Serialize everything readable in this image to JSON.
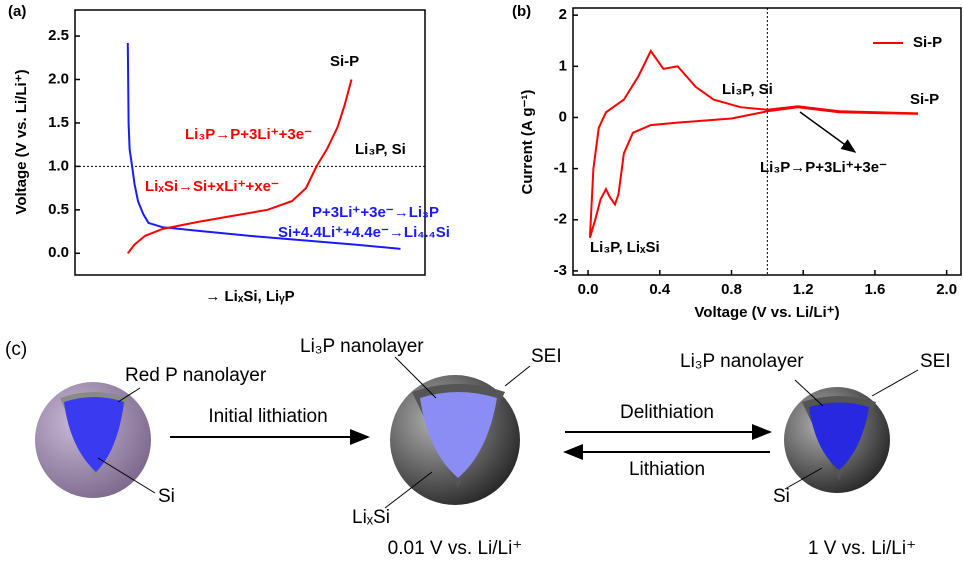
{
  "chart_data": [
    {
      "type": "line",
      "label": "(a)",
      "y_label": "Voltage (V vs. Li/Li⁺)",
      "x_label": "→ LiₓSi, LiᵧP",
      "xlim": [
        0,
        100
      ],
      "ylim": [
        -0.25,
        2.8
      ],
      "yticks": [
        {
          "value": 0,
          "label": "0.0"
        },
        0.5,
        {
          "value": 1,
          "label": "1.0"
        },
        1.5,
        {
          "value": 2,
          "label": "2.0"
        },
        2.5
      ],
      "hline": 1,
      "series": [
        {
          "color": "#1a1aff",
          "x": [
            15.1,
            15.3,
            15.6,
            16.3,
            17,
            18,
            19.5,
            21,
            25,
            35,
            50,
            65,
            80,
            93
          ],
          "values": [
            2.42,
            1.5,
            1.2,
            1.0,
            0.8,
            0.6,
            0.45,
            0.35,
            0.3,
            0.26,
            0.2,
            0.15,
            0.1,
            0.05
          ]
        },
        {
          "color": "#ff0000",
          "x": [
            15.1,
            17,
            20,
            25,
            35,
            45,
            55,
            62,
            66,
            69,
            72,
            75,
            77,
            79
          ],
          "values": [
            0.0,
            0.1,
            0.2,
            0.28,
            0.36,
            0.43,
            0.5,
            0.6,
            0.75,
            1.0,
            1.2,
            1.45,
            1.7,
            2.0
          ]
        }
      ],
      "annotations": [
        {
          "text": "Si-P",
          "color": "#000000"
        },
        {
          "text": "Li₃P→P+3Li⁺+3e⁻",
          "color": "#ff0000"
        },
        {
          "text": "Li₃P, Si",
          "color": "#000000"
        },
        {
          "text": "LiₓSi→Si+xLi⁺+xe⁻",
          "color": "#ff0000"
        },
        {
          "text": "P+3Li⁺+3e⁻→Li₃P",
          "color": "#1a1aff"
        },
        {
          "text": "Si+4.4Li⁺+4.4e⁻→Li₄.₄Si",
          "color": "#1a1aff"
        }
      ]
    },
    {
      "type": "line",
      "label": "(b)",
      "y_label": "Current (A g⁻¹)",
      "x_label": "Voltage (V vs. Li/Li⁺)",
      "xlim": [
        -0.084,
        2.08
      ],
      "ylim": [
        -3.08,
        2.14
      ],
      "xticks": [
        {
          "value": 0,
          "label": "0.0"
        },
        0.4,
        0.8,
        1.2,
        1.6,
        {
          "value": 2,
          "label": "2.0"
        }
      ],
      "yticks": [
        -3,
        -2,
        -1,
        0,
        1,
        2
      ],
      "vline": 1,
      "legend": "upper right",
      "series": [
        {
          "name": "Si-P",
          "color": "#ff0000",
          "x": [
            1.84,
            1.4,
            1.17,
            1.0,
            0.8,
            0.5,
            0.35,
            0.25,
            0.2,
            0.17,
            0.15,
            0.12,
            0.1,
            0.07,
            0.04,
            0.01,
            0.03,
            0.06,
            0.1,
            0.2,
            0.28,
            0.35,
            0.42,
            0.5,
            0.6,
            0.7,
            0.85,
            1.0,
            1.17,
            1.4,
            1.84
          ],
          "values": [
            0.07,
            0.1,
            0.2,
            0.12,
            -0.02,
            -0.1,
            -0.15,
            -0.3,
            -0.7,
            -1.5,
            -1.7,
            -1.55,
            -1.4,
            -1.6,
            -2.0,
            -2.35,
            -1.0,
            -0.2,
            0.1,
            0.35,
            0.8,
            1.3,
            0.95,
            1.0,
            0.6,
            0.35,
            0.2,
            0.15,
            0.22,
            0.12,
            0.08
          ]
        }
      ],
      "annotations": [
        {
          "text": "Li₃P, Si",
          "color": "#000000"
        },
        {
          "text": "Si-P",
          "color": "#000000"
        },
        {
          "text": "Li₃P→P+3Li⁺+3e⁻",
          "color": "#000000"
        },
        {
          "text": "Li₃P, LiₓSi",
          "color": "#000000"
        }
      ]
    }
  ],
  "diagram": {
    "label": "(c)",
    "left": {
      "shell": "Red P nanolayer",
      "core": "Si"
    },
    "step": "Initial lithiation",
    "middle": {
      "shell_inner": "Li₃P nanolayer",
      "shell_outer": "SEI",
      "core": "LiₓSi",
      "condition": "0.01 V vs. Li/Li⁺"
    },
    "forward": "Delithiation",
    "backward": "Lithiation",
    "right": {
      "shell_inner": "Li₃P nanolayer",
      "shell_outer": "SEI",
      "core": "Si",
      "condition": "1 V vs. Li/Li⁺"
    }
  }
}
